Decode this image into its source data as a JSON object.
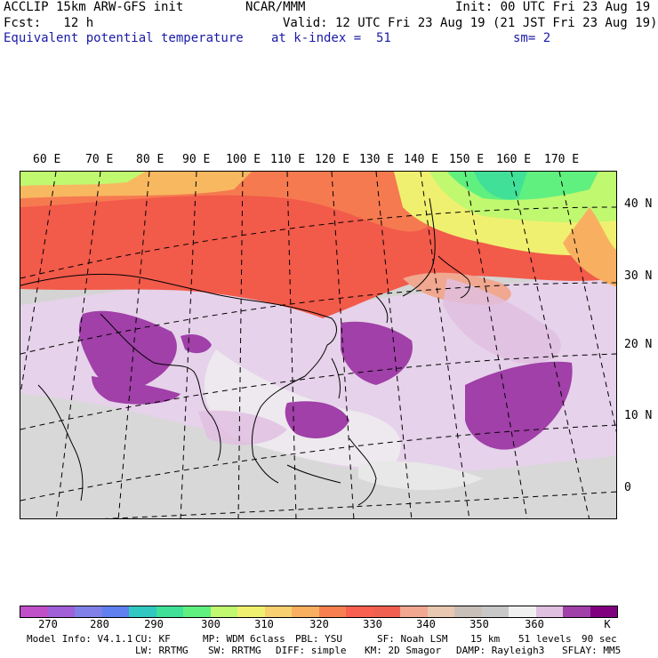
{
  "header": {
    "line1_left": "ACCLIP 15km ARW-GFS init",
    "line1_mid": "NCAR/MMM",
    "line1_right": "Init: 00 UTC Fri 23 Aug 19",
    "line2_left": "Fcst:   12 h",
    "line2_right": "Valid: 12 UTC Fri 23 Aug 19 (21 JST Fri 23 Aug 19)",
    "line3_left": "Equivalent potential temperature",
    "line3_mid": "at k-index =  51",
    "line3_right": "sm= 2"
  },
  "map": {
    "lon_labels": [
      "60 E",
      "70 E",
      "80 E",
      "90 E",
      "100 E",
      "110 E",
      "120 E",
      "130 E",
      "140 E",
      "150 E",
      "160 E",
      "170 E"
    ],
    "lat_labels": [
      "40 N",
      "30 N",
      "20 N",
      "10 N",
      "0"
    ]
  },
  "colorbar": {
    "colors": [
      "#c050c8",
      "#a060d8",
      "#8080e8",
      "#6080f0",
      "#30c8c0",
      "#40e098",
      "#60f080",
      "#c0f870",
      "#f0f070",
      "#f8d070",
      "#f8b060",
      "#f88050",
      "#f86050",
      "#f06050",
      "#f0a890",
      "#e8c8b0",
      "#c8c0b8",
      "#c8c8c8",
      "#f0f0f0",
      "#e0c0e0",
      "#a040a8",
      "#800080"
    ],
    "labels": [
      "270",
      "280",
      "290",
      "300",
      "310",
      "320",
      "330",
      "340",
      "350",
      "360"
    ],
    "unit": "K"
  },
  "footer": {
    "row1": [
      "Model Info: V4.1.1",
      "CU: KF",
      "MP: WDM 6class",
      "PBL: YSU",
      "SF: Noah LSM",
      "15 km",
      "51 levels",
      "90 sec"
    ],
    "row2": [
      "LW: RRTMG",
      "SW: RRTMG",
      "DIFF: simple",
      "KM: 2D Smagor",
      "DAMP: Rayleigh3",
      "SFLAY: MM5"
    ]
  }
}
